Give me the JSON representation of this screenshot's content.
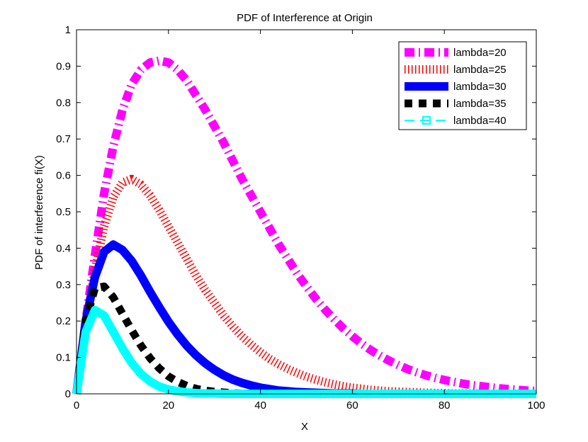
{
  "chart_data": {
    "type": "line",
    "title": "PDF of Interference at Origin",
    "xlabel": "X",
    "ylabel": "PDF of interference fi(X)",
    "xlim": [
      0,
      100
    ],
    "ylim": [
      0,
      1
    ],
    "xticks": [
      0,
      20,
      40,
      60,
      80,
      100
    ],
    "xtick_labels": [
      "0",
      "20",
      "40",
      "60",
      "80",
      "100"
    ],
    "yticks": [
      0,
      0.1,
      0.2,
      0.3,
      0.4,
      0.5,
      0.6,
      0.7,
      0.8,
      0.9,
      1
    ],
    "ytick_labels": [
      "0",
      "0.1",
      "0.2",
      "0.3",
      "0.4",
      "0.5",
      "0.6",
      "0.7",
      "0.8",
      "0.9",
      "1"
    ],
    "grid": false,
    "legend_position": "top-right",
    "x": [
      0,
      2,
      4,
      6,
      8,
      10,
      12,
      14,
      16,
      18,
      20,
      22,
      24,
      26,
      28,
      30,
      32,
      34,
      36,
      38,
      40,
      42,
      44,
      46,
      48,
      50,
      52,
      54,
      56,
      58,
      60,
      62,
      64,
      66,
      68,
      70,
      72,
      74,
      76,
      78,
      80,
      82,
      84,
      86,
      88,
      90,
      92,
      94,
      96,
      98,
      100
    ],
    "series": [
      {
        "name": "lambda=20",
        "color": "#ff00ff",
        "style": "dashdot",
        "values": [
          0,
          0.2,
          0.38,
          0.55,
          0.68,
          0.78,
          0.85,
          0.89,
          0.91,
          0.915,
          0.91,
          0.89,
          0.86,
          0.82,
          0.78,
          0.735,
          0.69,
          0.64,
          0.59,
          0.545,
          0.5,
          0.455,
          0.41,
          0.37,
          0.33,
          0.295,
          0.262,
          0.232,
          0.205,
          0.18,
          0.158,
          0.138,
          0.12,
          0.105,
          0.091,
          0.079,
          0.068,
          0.059,
          0.051,
          0.044,
          0.038,
          0.033,
          0.028,
          0.024,
          0.021,
          0.018,
          0.015,
          0.013,
          0.011,
          0.009,
          0.008
        ]
      },
      {
        "name": "lambda=25",
        "color": "#ff0000",
        "style": "dotted",
        "values": [
          0,
          0.19,
          0.34,
          0.46,
          0.54,
          0.58,
          0.59,
          0.575,
          0.545,
          0.505,
          0.46,
          0.415,
          0.37,
          0.325,
          0.285,
          0.25,
          0.215,
          0.185,
          0.158,
          0.135,
          0.114,
          0.096,
          0.081,
          0.068,
          0.057,
          0.047,
          0.039,
          0.032,
          0.026,
          0.021,
          0.017,
          0.014,
          0.011,
          0.009,
          0.007,
          0.006,
          0.005,
          0.004,
          0.003,
          0.002,
          0.002,
          0.001,
          0.001,
          0.001,
          0.001,
          0,
          0,
          0,
          0,
          0,
          0
        ]
      },
      {
        "name": "lambda=30",
        "color": "#0000ff",
        "style": "solid",
        "values": [
          0,
          0.2,
          0.32,
          0.39,
          0.41,
          0.395,
          0.365,
          0.325,
          0.28,
          0.238,
          0.198,
          0.163,
          0.132,
          0.106,
          0.084,
          0.066,
          0.051,
          0.039,
          0.03,
          0.023,
          0.017,
          0.013,
          0.009,
          0.007,
          0.005,
          0.004,
          0.003,
          0.002,
          0.001,
          0.001,
          0.001,
          0,
          0,
          0,
          0,
          0,
          0,
          0,
          0,
          0,
          0,
          0,
          0,
          0,
          0,
          0,
          0,
          0,
          0,
          0,
          0
        ]
      },
      {
        "name": "lambda=35",
        "color": "#000000",
        "style": "dashed",
        "values": [
          0,
          0.2,
          0.29,
          0.295,
          0.265,
          0.22,
          0.175,
          0.133,
          0.098,
          0.07,
          0.048,
          0.033,
          0.022,
          0.014,
          0.009,
          0.006,
          0.004,
          0.002,
          0.001,
          0.001,
          0,
          0,
          0,
          0,
          0,
          0,
          0,
          0,
          0,
          0,
          0,
          0,
          0,
          0,
          0,
          0,
          0,
          0,
          0,
          0,
          0,
          0,
          0,
          0,
          0,
          0,
          0,
          0,
          0,
          0,
          0
        ]
      },
      {
        "name": "lambda=40",
        "color": "#00ffff",
        "style": "dashed-square",
        "values": [
          0,
          0.17,
          0.23,
          0.215,
          0.17,
          0.125,
          0.085,
          0.055,
          0.034,
          0.02,
          0.012,
          0.007,
          0.004,
          0.002,
          0.001,
          0.001,
          0,
          0,
          0,
          0,
          0,
          0,
          0,
          0,
          0,
          0,
          0,
          0,
          0,
          0,
          0,
          0,
          0,
          0,
          0,
          0,
          0,
          0,
          0,
          0,
          0,
          0,
          0,
          0,
          0,
          0,
          0,
          0,
          0,
          0,
          0
        ]
      }
    ]
  }
}
